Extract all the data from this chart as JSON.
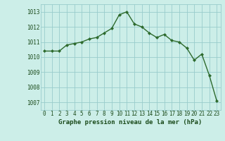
{
  "x": [
    0,
    1,
    2,
    3,
    4,
    5,
    6,
    7,
    8,
    9,
    10,
    11,
    12,
    13,
    14,
    15,
    16,
    17,
    18,
    19,
    20,
    21,
    22,
    23
  ],
  "y": [
    1010.4,
    1010.4,
    1010.4,
    1010.8,
    1010.9,
    1011.0,
    1011.2,
    1011.3,
    1011.6,
    1011.9,
    1012.8,
    1013.0,
    1012.2,
    1012.0,
    1011.6,
    1011.3,
    1011.5,
    1011.1,
    1011.0,
    1010.6,
    1009.8,
    1010.2,
    1008.8,
    1007.1
  ],
  "line_color": "#2d6a2d",
  "marker": "D",
  "marker_size": 2.0,
  "bg_color": "#cceee8",
  "grid_color": "#99cccc",
  "xlabel": "Graphe pression niveau de la mer (hPa)",
  "ylim": [
    1006.5,
    1013.5
  ],
  "xlim": [
    -0.5,
    23.5
  ],
  "yticks": [
    1007,
    1008,
    1009,
    1010,
    1011,
    1012,
    1013
  ],
  "xticks": [
    0,
    1,
    2,
    3,
    4,
    5,
    6,
    7,
    8,
    9,
    10,
    11,
    12,
    13,
    14,
    15,
    16,
    17,
    18,
    19,
    20,
    21,
    22,
    23
  ],
  "text_color": "#1a4a1a",
  "xlabel_fontsize": 6.5,
  "tick_fontsize": 5.5,
  "line_width": 1.0
}
